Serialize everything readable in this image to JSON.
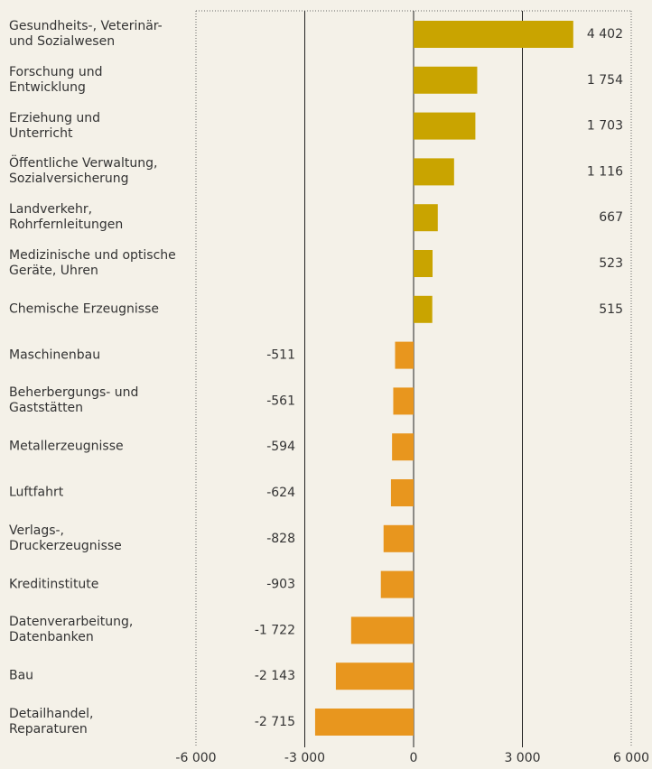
{
  "chart_data": {
    "type": "barh",
    "categories": [
      "Gesundheits-, Veterinär-\nund Sozialwesen",
      "Forschung und\nEntwicklung",
      "Erziehung und\nUnterricht",
      "Öffentliche Verwaltung,\nSozialversicherung",
      "Landverkehr,\nRohrfernleitungen",
      "Medizinische und optische\nGeräte, Uhren",
      "Chemische Erzeugnisse",
      "Maschinenbau",
      "Beherbergungs- und\nGaststätten",
      "Metallerzeugnisse",
      "Luftfahrt",
      "Verlags-,\nDruckerzeugnisse",
      "Kreditinstitute",
      "Datenverarbeitung,\nDatenbanken",
      "Bau",
      "Detailhandel,\nReparaturen"
    ],
    "values": [
      4402,
      1754,
      1703,
      1116,
      667,
      523,
      515,
      -511,
      -561,
      -594,
      -624,
      -828,
      -903,
      -1722,
      -2143,
      -2715
    ],
    "value_labels": [
      "4 402",
      "1 754",
      "1 703",
      "1 116",
      "667",
      "523",
      "515",
      "-511",
      "-561",
      "-594",
      "-624",
      "-828",
      "-903",
      "-1 722",
      "-2 143",
      "-2 715"
    ],
    "color_positive": "#c9a400",
    "color_negative": "#e8961e",
    "xlim": [
      -6000,
      6000
    ],
    "xticks": [
      {
        "value": -6000,
        "label": "-6 000"
      },
      {
        "value": -3000,
        "label": "-3 000"
      },
      0,
      {
        "value": 3000,
        "label": "3 000"
      },
      {
        "value": 6000,
        "label": "6 000"
      }
    ],
    "grid": true
  }
}
